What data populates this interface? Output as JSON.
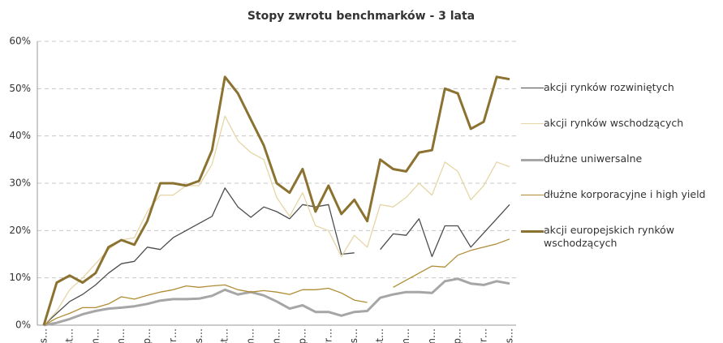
{
  "chart_data": {
    "type": "line",
    "title": "Stopy zwrotu benchmarków - 3 lata",
    "categories": [
      "lis…",
      null,
      "st…",
      null,
      "m…",
      null,
      "m…",
      null,
      "lip…",
      null,
      "wr…",
      null,
      "lis…",
      null,
      "st…",
      null,
      "m…",
      null,
      "m…",
      null,
      "lip…",
      null,
      "wr…",
      null,
      "lis…",
      null,
      "st…",
      null,
      "m…",
      null,
      "m…",
      null,
      "lip…",
      null,
      "wr…",
      null,
      "lis…"
    ],
    "ylim": [
      0,
      60
    ],
    "yticks": [
      {
        "value": 0,
        "label": "0%"
      },
      {
        "value": 10,
        "label": "10%"
      },
      {
        "value": 20,
        "label": "20%"
      },
      {
        "value": 30,
        "label": "30%"
      },
      {
        "value": 40,
        "label": "40%"
      },
      {
        "value": 50,
        "label": "50%"
      },
      {
        "value": 60,
        "label": "60%"
      }
    ],
    "grid": true,
    "series": [
      {
        "name": "akcji rynków rozwiniętych",
        "color": "#4d4d4d",
        "width": 1.3,
        "values": [
          0,
          2.5,
          5,
          6.5,
          8.5,
          11,
          13,
          13.5,
          16.5,
          16,
          18.5,
          20,
          21.5,
          23,
          29,
          25,
          22.8,
          25,
          24,
          22.5,
          25.5,
          25,
          25.5,
          15,
          15.3,
          null,
          16,
          19.3,
          19,
          22.5,
          14.5,
          21,
          21,
          16.5,
          19.5,
          22.5,
          25.5
        ]
      },
      {
        "name": "akcji rynków wschodzących",
        "color": "#e6d5a6",
        "width": 1.3,
        "values": [
          0,
          3,
          7.5,
          10,
          13,
          16,
          18,
          18.5,
          24,
          27.5,
          27.5,
          29.5,
          29.5,
          34,
          44.2,
          39,
          36.5,
          35,
          27,
          23,
          28,
          21,
          20,
          14.5,
          19,
          16.5,
          25.5,
          25,
          27,
          30,
          27.5,
          34.5,
          32.5,
          26.5,
          29.5,
          34.5,
          33.5
        ]
      },
      {
        "name": "dłużne uniwersalne",
        "color": "#a6a6a6",
        "width": 3,
        "values": [
          0,
          0.5,
          1.3,
          2.3,
          3,
          3.5,
          3.7,
          4,
          4.5,
          5.2,
          5.5,
          5.5,
          5.6,
          6.2,
          7.5,
          6.5,
          7,
          6.3,
          5,
          3.5,
          4.2,
          2.8,
          2.8,
          2,
          2.8,
          3,
          5.8,
          6.5,
          7,
          7,
          6.8,
          9.3,
          9.8,
          8.8,
          8.5,
          9.3,
          8.8
        ]
      },
      {
        "name": "dłużne korporacyjne i high yield",
        "color": "#b08d35",
        "width": 1.3,
        "values": [
          0,
          1.5,
          2.5,
          3.7,
          3.7,
          4.5,
          6,
          5.5,
          6.3,
          7,
          7.5,
          8.3,
          8,
          8.3,
          8.5,
          7.5,
          7,
          7.3,
          7,
          6.5,
          7.5,
          7.5,
          7.8,
          6.8,
          5.3,
          4.8,
          null,
          8,
          9.5,
          11,
          12.5,
          12.3,
          14.8,
          15.8,
          16.5,
          17.2,
          18.2
        ]
      },
      {
        "name": "akcji europejskich rynków wschodzących",
        "color": "#8b7230",
        "width": 3,
        "values": [
          0,
          9,
          10.5,
          9,
          11,
          16.5,
          18,
          17,
          22,
          30,
          30,
          29.5,
          30.5,
          37,
          52.5,
          49,
          43.5,
          38,
          30,
          28,
          33,
          24,
          29.5,
          23.5,
          26.5,
          22,
          35,
          33,
          32.5,
          36.5,
          37,
          50,
          49,
          41.5,
          43,
          52.5,
          52
        ]
      }
    ]
  }
}
